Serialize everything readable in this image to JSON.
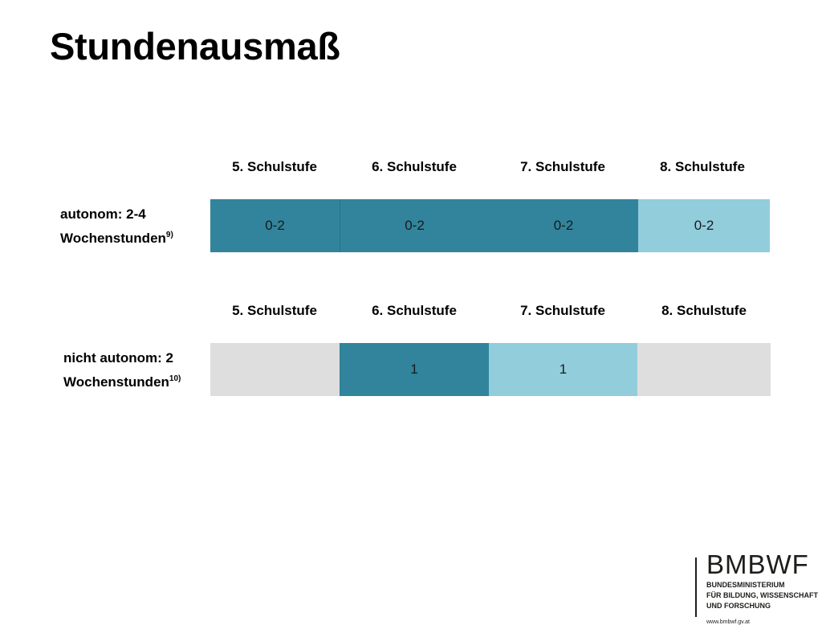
{
  "title": "Stundenausmaß",
  "tables": [
    {
      "headers": [
        "5. Schulstufe",
        "6. Schulstufe",
        "7. Schulstufe",
        "8. Schulstufe"
      ],
      "label_line1": "autonom: 2-4",
      "label_line2": "Wochenstunden",
      "label_sup": "9)",
      "cells": [
        "0-2",
        "0-2",
        "0-2",
        "0-2"
      ]
    },
    {
      "headers": [
        "5. Schulstufe",
        "6. Schulstufe",
        "7. Schulstufe",
        "8. Schulstufe"
      ],
      "label_line1": "nicht autonom: 2",
      "label_line2": "Wochenstunden",
      "label_sup": "10)",
      "cells": [
        "",
        "1",
        "1",
        ""
      ]
    }
  ],
  "logo": {
    "word": "BMBWF",
    "line1": "BUNDESMINISTERIUM",
    "line2": "FÜR BILDUNG, WISSENSCHAFT",
    "line3": "UND FORSCHUNG",
    "url": "www.bmbwf.gv.at"
  },
  "colors": {
    "dark": "#31849b",
    "light": "#92cddc",
    "empty": "#dedede"
  }
}
